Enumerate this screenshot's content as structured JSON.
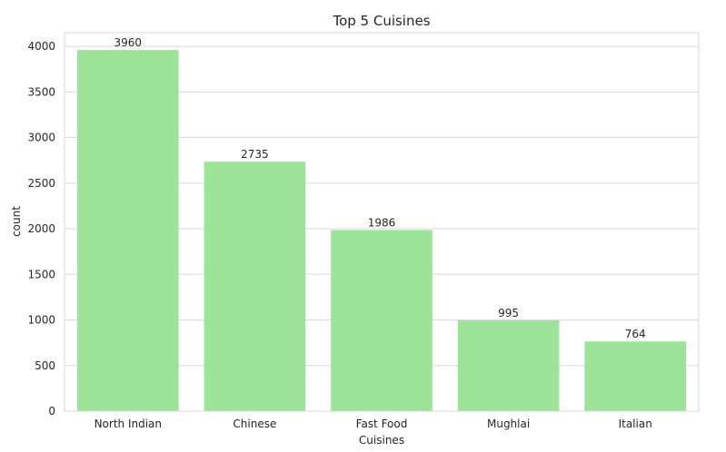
{
  "chart_data": {
    "type": "bar",
    "title": "Top 5 Cuisines",
    "xlabel": "Cuisines",
    "ylabel": "count",
    "categories": [
      "North Indian",
      "Chinese",
      "Fast Food",
      "Mughlai",
      "Italian"
    ],
    "values": [
      3960,
      2735,
      1986,
      995,
      764
    ],
    "data_labels": [
      "3960",
      "2735",
      "1986",
      "995",
      "764"
    ],
    "ylim": [
      0,
      4150
    ],
    "yticks": [
      0,
      500,
      1000,
      1500,
      2000,
      2500,
      3000,
      3500,
      4000
    ],
    "ytick_labels": [
      "0",
      "500",
      "1000",
      "1500",
      "2000",
      "2500",
      "3000",
      "3500",
      "4000"
    ],
    "grid": true,
    "grid_axis": "y",
    "bar_color": "#9de39a",
    "grid_color": "#d9d9d9",
    "text_color": "#262626"
  }
}
